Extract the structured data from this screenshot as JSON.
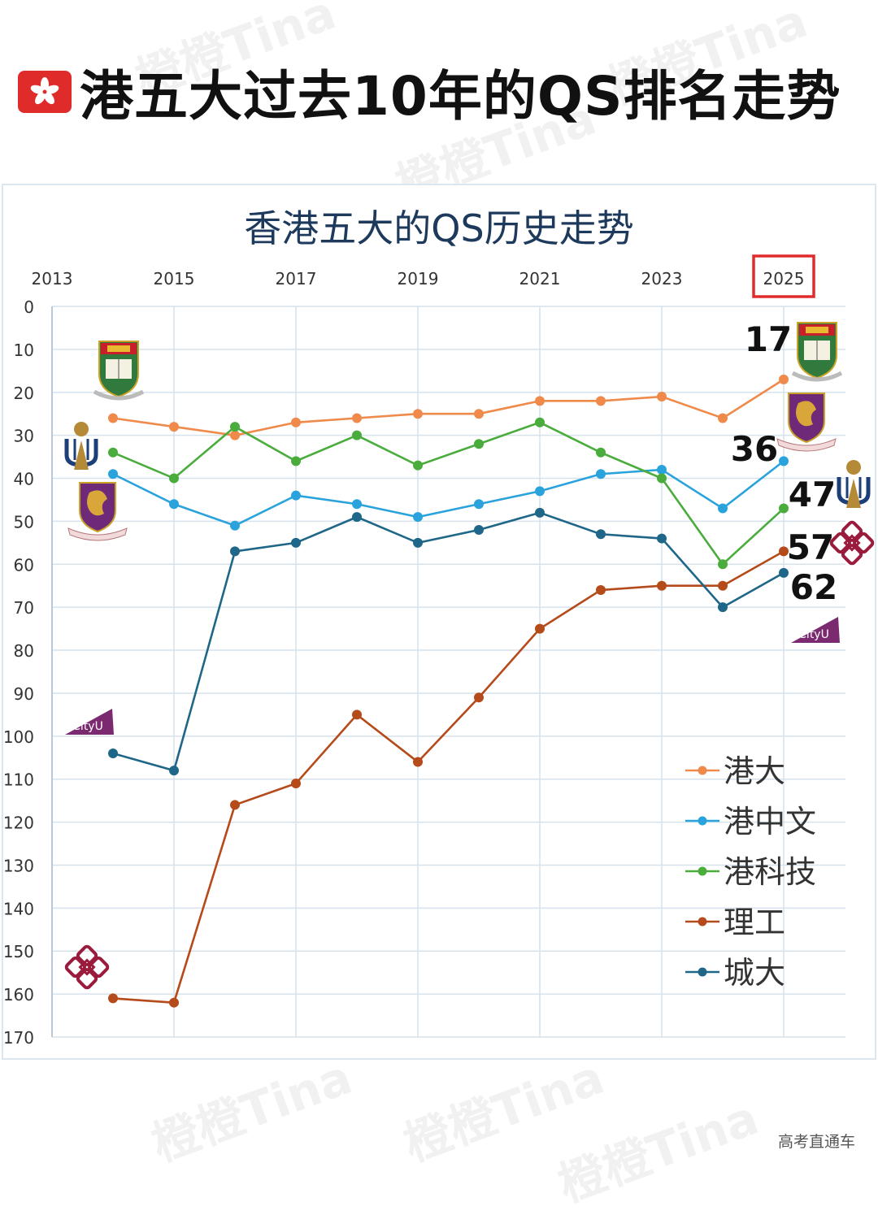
{
  "header": {
    "title": "港五大过去10年的QS排名走势",
    "flag_icon": "hong-kong-flag-icon"
  },
  "watermark_text": "橙橙Tina",
  "footer": {
    "brand": "高考直通车"
  },
  "colors": {
    "港大": "#ef8a4a",
    "港中文": "#2aa3dc",
    "港科技": "#4aac3c",
    "理工": "#b54a1a",
    "城大": "#1f6788",
    "grid": "#d6e2ec",
    "highlight": "#e02b2b",
    "title_navy": "#1d3a5c"
  },
  "chart_data": {
    "type": "line",
    "title": "香港五大的QS历史走势",
    "x_ticks": [
      "2013",
      "2015",
      "2017",
      "2019",
      "2021",
      "2023",
      "2025"
    ],
    "highlighted_x_tick": "2025",
    "x": [
      2014,
      2015,
      2016,
      2017,
      2018,
      2019,
      2020,
      2021,
      2022,
      2023,
      2024,
      2025
    ],
    "xlim": [
      2013,
      2026
    ],
    "y_ticks": [
      "0",
      "10",
      "20",
      "30",
      "40",
      "50",
      "60",
      "70",
      "80",
      "90",
      "100",
      "110",
      "120",
      "130",
      "140",
      "150",
      "160",
      "170"
    ],
    "ylim": [
      0,
      170
    ],
    "y_inverted": true,
    "grid": true,
    "legend_position": "bottom-right",
    "series": [
      {
        "name": "港大",
        "values": [
          26,
          28,
          30,
          27,
          26,
          25,
          25,
          22,
          22,
          21,
          26,
          17
        ],
        "end_label": "17"
      },
      {
        "name": "港中文",
        "values": [
          39,
          46,
          51,
          44,
          46,
          49,
          46,
          43,
          39,
          38,
          47,
          36
        ],
        "end_label": "36"
      },
      {
        "name": "港科技",
        "values": [
          34,
          40,
          28,
          36,
          30,
          37,
          32,
          27,
          34,
          40,
          60,
          47
        ],
        "end_label": "47"
      },
      {
        "name": "理工",
        "values": [
          161,
          162,
          116,
          111,
          95,
          106,
          91,
          75,
          66,
          65,
          65,
          57
        ],
        "end_label": "57"
      },
      {
        "name": "城大",
        "values": [
          104,
          108,
          57,
          55,
          49,
          55,
          52,
          48,
          53,
          54,
          70,
          62
        ],
        "end_label": "62"
      }
    ],
    "logos": {
      "港大": "hku-crest-icon",
      "港中文": "cuhk-crest-icon",
      "港科技": "hkust-logo-icon",
      "理工": "polyu-logo-icon",
      "城大": "cityu-logo-icon"
    },
    "logo_texts": {
      "城大": "CityU"
    }
  }
}
